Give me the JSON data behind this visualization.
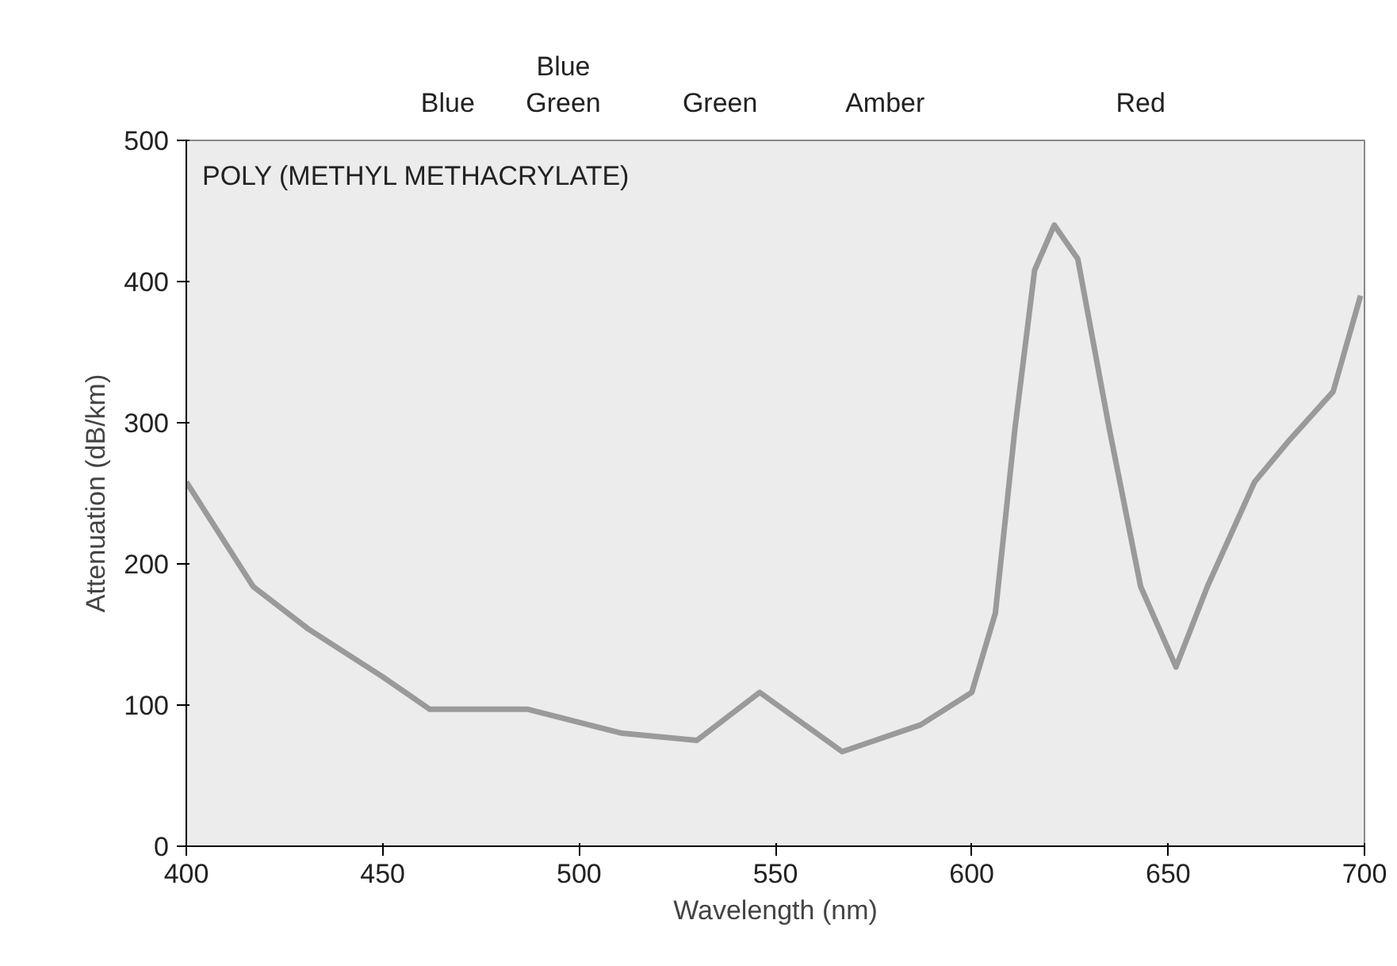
{
  "chart_data": {
    "type": "line",
    "title": "POLY (METHYL METHACRYLATE)",
    "xlabel": "Wavelength (nm)",
    "ylabel": "Attenuation (dB/km)",
    "x": [
      400,
      417,
      431,
      450,
      462,
      487,
      511,
      530,
      546,
      567,
      587,
      600,
      606,
      611,
      616,
      621,
      627,
      635,
      643,
      652,
      660,
      672,
      681,
      692,
      699
    ],
    "series": [
      {
        "color": "#9a9a9a",
        "values": [
          258,
          184,
          154,
          120,
          97,
          97,
          80,
          75,
          109,
          67,
          86,
          109,
          165,
          296,
          408,
          440,
          416,
          296,
          184,
          127,
          184,
          258,
          288,
          322,
          390
        ]
      }
    ],
    "xlim": [
      400,
      700
    ],
    "ylim": [
      0,
      500
    ],
    "xticks": [
      400,
      450,
      500,
      550,
      600,
      650,
      700
    ],
    "yticks": [
      0,
      100,
      200,
      300,
      400,
      500
    ],
    "annotations": [
      "Blue",
      "Blue\nGreen",
      "Green",
      "Amber",
      "Red"
    ],
    "grid": false,
    "marker": "none",
    "line_style": "solid"
  }
}
